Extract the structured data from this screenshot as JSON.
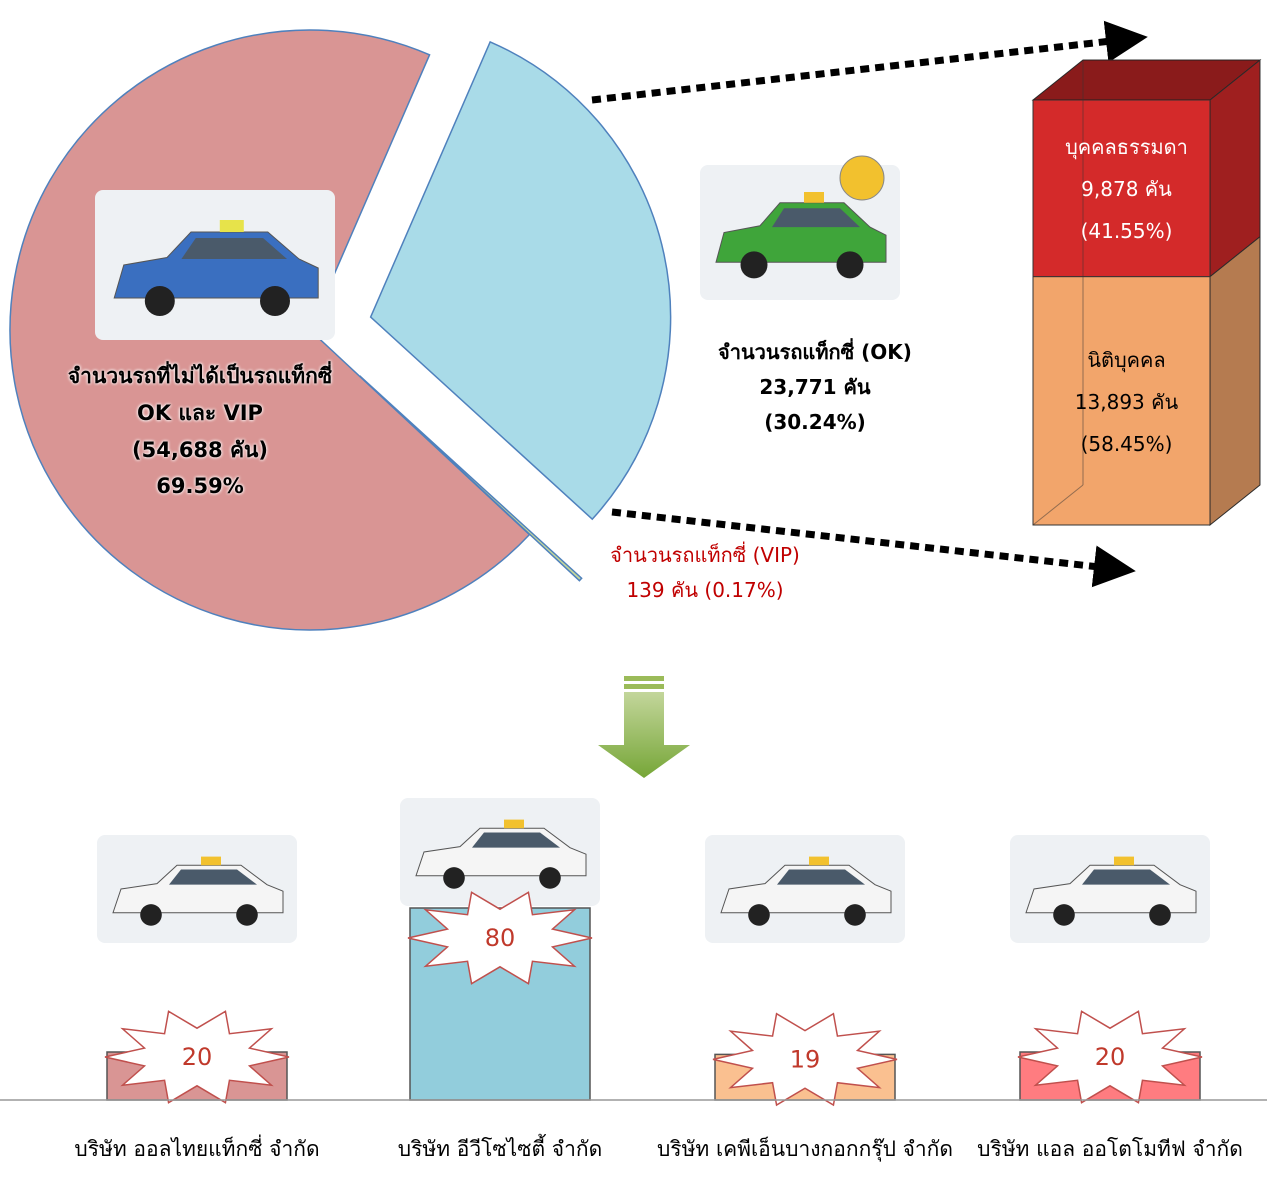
{
  "chart_data": [
    {
      "type": "pie",
      "categories": [
        "จำนวนรถที่ไม่ได้เป็นรถแท็กซี่ OK และ VIP",
        "จำนวนรถแท็กซี่ (OK)",
        "จำนวนรถแท็กซี่ (VIP)"
      ],
      "values": [
        54688,
        23771,
        139
      ],
      "value_labels": [
        "(54,688 คัน)",
        "23,771 คัน",
        "139 คัน"
      ],
      "percents": [
        69.59,
        30.24,
        0.17
      ],
      "percent_labels": [
        "69.59%",
        "(30.24%)",
        "(0.17%)"
      ],
      "colors": [
        "#d99594",
        "#a9dbe8",
        "#c3d69b"
      ]
    },
    {
      "type": "stacked-box",
      "categories": [
        "นิติบุคคล",
        "บุคคลธรรมดา"
      ],
      "values": [
        13893,
        9878
      ],
      "value_labels": [
        "13,893 คัน",
        "9,878 คัน"
      ],
      "percents": [
        58.45,
        41.55
      ],
      "percent_labels": [
        "(58.45%)",
        "(41.55%)"
      ],
      "colors": [
        "#f2a56b",
        "#d42a2a"
      ]
    },
    {
      "type": "bar",
      "categories": [
        "บริษัท ออลไทยแท็กซี่ จำกัด",
        "บริษัท อีวีโซไซตี้ จำกัด",
        "บริษัท เคพีเอ็นบางกอกกรุ๊ป จำกัด",
        "บริษัท แอล ออโตโมทีฟ จำกัด"
      ],
      "values": [
        20,
        80,
        19,
        20
      ],
      "colors": [
        "#d99594",
        "#92cddc",
        "#fac090",
        "#ff7c80"
      ]
    }
  ]
}
